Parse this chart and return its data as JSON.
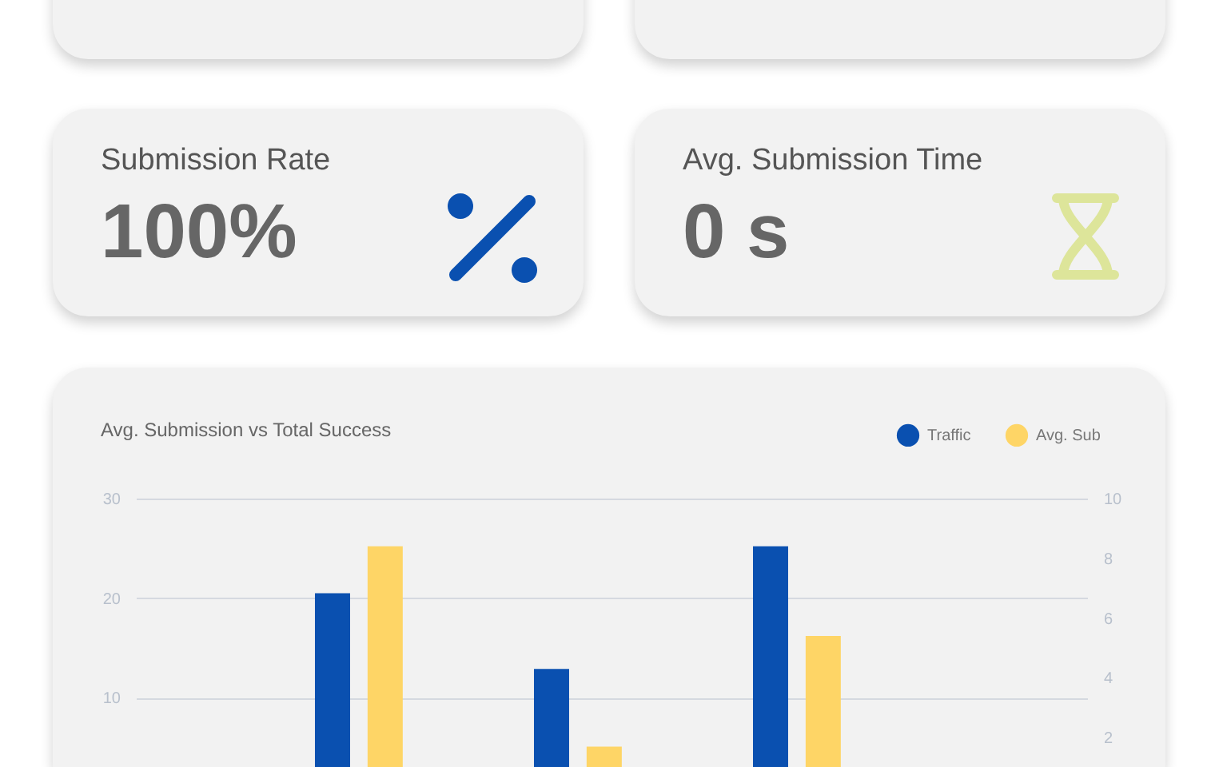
{
  "chart_data": [
    {
      "type": "other",
      "title": "Submission Rate",
      "annotations": [
        "100%"
      ]
    },
    {
      "type": "other",
      "title": "Avg. Submission Time",
      "annotations": [
        "0 s"
      ]
    },
    {
      "type": "bar",
      "title": "Avg. Submission vs Total Success",
      "categories": [
        null,
        null,
        null
      ],
      "series": [
        {
          "name": "Traffic",
          "color": "#0a50b0",
          "values": [
            20.5,
            12.9,
            25.2
          ]
        },
        {
          "name": "Avg. Sub",
          "color": "#fed566",
          "values": [
            8.4,
            1.7,
            5.4
          ],
          "axis": "y2"
        }
      ],
      "ylim": [
        0,
        30
      ],
      "yticks": [
        10,
        20,
        30
      ],
      "y2lim": [
        0,
        10
      ],
      "y2ticks": [
        2,
        4,
        6,
        8,
        10
      ],
      "grid": "y",
      "legend": "top right"
    }
  ]
}
